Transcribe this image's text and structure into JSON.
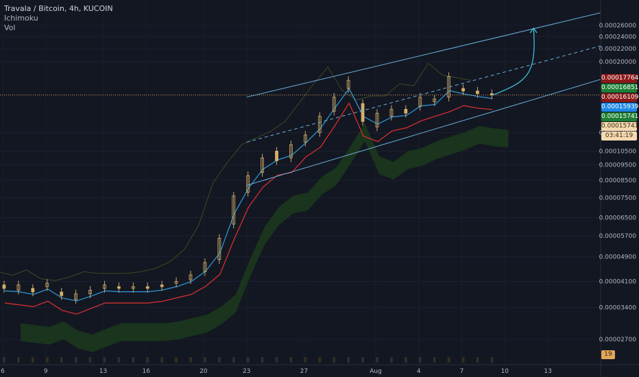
{
  "legend": {
    "title": "Travala / Bitcoin, 4h, KUCOIN",
    "indicator_1": "Ichimoku",
    "indicator_2": "Vol"
  },
  "colors": {
    "background": "#131722",
    "candle_body": "#d4b06a",
    "wick": "#c8a870",
    "tenkan": "#2f9ee0",
    "kijun": "#d32f2f",
    "chikou": "#3a4a22",
    "cloud": "#1c3a1c",
    "channel": "#6ab0da",
    "arrow": "#3ec0d8",
    "current_line": "#e0a75a"
  },
  "price_tags": [
    {
      "text": "0.00017764",
      "bg": "#8b1a1a",
      "fg": "#ffffff",
      "price": 0.00017764
    },
    {
      "text": "0.00016851",
      "bg": "#1e7f34",
      "fg": "#ffffff",
      "price": 0.00016851
    },
    {
      "text": "0.00016109",
      "bg": "#8b1a1a",
      "fg": "#ffffff",
      "price": 0.00016109
    },
    {
      "text": "0.00015939",
      "bg": "#1e88e5",
      "fg": "#ffffff",
      "price": 0.00015939
    },
    {
      "text": "0.00015741",
      "bg": "#1e7f34",
      "fg": "#ffffff",
      "price": 0.00015741
    },
    {
      "text": "0.00015741",
      "bg": "#f5d9b0",
      "fg": "#3a2a10",
      "price": 0.00015741
    },
    {
      "text": "03:41:19",
      "bg": "#f5d9b0",
      "fg": "#3a2a10",
      "price": 0.000148
    },
    {
      "text": "19",
      "bg": "#e0a75a",
      "fg": "#3a2a10",
      "price": 2.42e-05
    }
  ],
  "chart_data": {
    "type": "candlestick",
    "y_scale": "log",
    "ylim": [
      2.25e-05,
      0.00029
    ],
    "y_ticks": [
      "0.00026000",
      "0.00024000",
      "0.00022000",
      "0.00020000",
      "0.00012000",
      "0.00010500",
      "0.00009500",
      "0.00008500",
      "0.00007500",
      "0.00006500",
      "0.00005700",
      "0.00004900",
      "0.00004100",
      "0.00003400",
      "0.00002700"
    ],
    "x_ticks": [
      "6",
      "9",
      "13",
      "16",
      "20",
      "23",
      "27",
      "Aug",
      "4",
      "7",
      "10",
      "13"
    ],
    "x_domain": [
      "Jul 6",
      "Aug 14"
    ],
    "candles": [
      {
        "date": "Jul 6",
        "open": 4e-05,
        "close": 3.9e-05
      },
      {
        "date": "Jul 7",
        "open": 3.85e-05,
        "close": 4e-05
      },
      {
        "date": "Jul 8",
        "open": 3.9e-05,
        "close": 3.8e-05
      },
      {
        "date": "Jul 9",
        "open": 3.95e-05,
        "close": 4.05e-05
      },
      {
        "date": "Jul 10",
        "open": 3.8e-05,
        "close": 3.7e-05
      },
      {
        "date": "Jul 11",
        "open": 3.6e-05,
        "close": 3.75e-05
      },
      {
        "date": "Jul 12",
        "open": 3.75e-05,
        "close": 3.85e-05
      },
      {
        "date": "Jul 13",
        "open": 3.9e-05,
        "close": 4e-05
      },
      {
        "date": "Jul 14",
        "open": 3.95e-05,
        "close": 3.9e-05
      },
      {
        "date": "Jul 15",
        "open": 3.9e-05,
        "close": 3.95e-05
      },
      {
        "date": "Jul 16",
        "open": 3.95e-05,
        "close": 3.9e-05
      },
      {
        "date": "Jul 17",
        "open": 4e-05,
        "close": 3.95e-05
      },
      {
        "date": "Jul 18",
        "open": 4.05e-05,
        "close": 4.1e-05
      },
      {
        "date": "Jul 19",
        "open": 4.15e-05,
        "close": 4.3e-05
      },
      {
        "date": "Jul 20",
        "open": 4.4e-05,
        "close": 4.7e-05
      },
      {
        "date": "Jul 21",
        "open": 4.8e-05,
        "close": 5.6e-05
      },
      {
        "date": "Jul 22",
        "open": 6.2e-05,
        "close": 7.6e-05
      },
      {
        "date": "Jul 23",
        "open": 7.8e-05,
        "close": 8.8e-05
      },
      {
        "date": "Jul 24",
        "open": 9e-05,
        "close": 0.0001
      },
      {
        "date": "Jul 25",
        "open": 0.000105,
        "close": 9.8e-05
      },
      {
        "date": "Jul 26",
        "open": 0.0001,
        "close": 0.00011
      },
      {
        "date": "Jul 27",
        "open": 0.000112,
        "close": 0.000118
      },
      {
        "date": "Jul 28",
        "open": 0.00012,
        "close": 0.000135
      },
      {
        "date": "Jul 29",
        "open": 0.00014,
        "close": 0.000155
      },
      {
        "date": "Jul 30",
        "open": 0.000165,
        "close": 0.000175
      },
      {
        "date": "Jul 31",
        "open": 0.000148,
        "close": 0.00013
      },
      {
        "date": "Aug 1",
        "open": 0.000125,
        "close": 0.000138
      },
      {
        "date": "Aug 2",
        "open": 0.000135,
        "close": 0.000142
      },
      {
        "date": "Aug 3",
        "open": 0.000142,
        "close": 0.000138
      },
      {
        "date": "Aug 4",
        "open": 0.000145,
        "close": 0.000155
      },
      {
        "date": "Aug 5",
        "open": 0.00015,
        "close": 0.000153
      },
      {
        "date": "Aug 6",
        "open": 0.000155,
        "close": 0.00018
      },
      {
        "date": "Aug 7",
        "open": 0.000165,
        "close": 0.000162
      },
      {
        "date": "Aug 8",
        "open": 0.000162,
        "close": 0.000159
      },
      {
        "date": "Aug 9",
        "open": 0.000159,
        "close": 0.0001574
      }
    ],
    "current_price": 0.00015741,
    "projection_target": 0.000255,
    "projection_target_date": "Aug 12",
    "channel": {
      "start_date": "Jul 23",
      "end_date": "Aug 14",
      "upper": [
        0.000155,
        0.0003
      ],
      "mid": [
        0.000112,
        0.000238
      ],
      "lower": [
        8.2e-05,
        0.000188
      ]
    }
  }
}
